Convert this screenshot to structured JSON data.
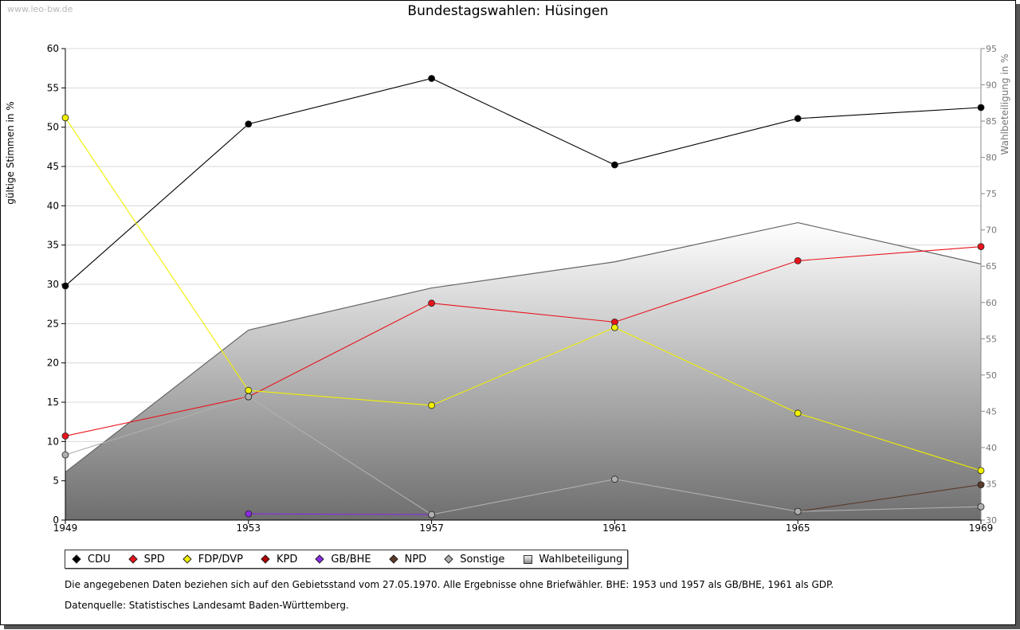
{
  "header": {
    "watermark": "www.leo-bw.de"
  },
  "chart_data": {
    "type": "line",
    "title": "Bundestagswahlen: Hüsingen",
    "ylabel": "gültige Stimmen in %",
    "y2label": "Wahlbeteiligung in %",
    "xlabel": "",
    "x": [
      "1949",
      "1953",
      "1957",
      "1961",
      "1965",
      "1969"
    ],
    "ylim": [
      0,
      60
    ],
    "y2lim": [
      30,
      95
    ],
    "yticks": [
      "0",
      "5",
      "10",
      "15",
      "20",
      "25",
      "30",
      "35",
      "40",
      "45",
      "50",
      "55",
      "60"
    ],
    "y2ticks": [
      "30",
      "35",
      "40",
      "45",
      "50",
      "55",
      "60",
      "65",
      "70",
      "75",
      "80",
      "85",
      "90",
      "95"
    ],
    "grid": true,
    "series": [
      {
        "name": "CDU",
        "color": "#000000",
        "values": [
          29.8,
          50.4,
          56.2,
          45.2,
          51.1,
          52.5
        ]
      },
      {
        "name": "SPD",
        "color": "#e8141c",
        "values": [
          10.7,
          15.7,
          27.6,
          25.2,
          33.0,
          34.8
        ]
      },
      {
        "name": "FDP/DVP",
        "color": "#f0f000",
        "values": [
          51.2,
          16.5,
          14.6,
          24.5,
          13.6,
          6.3
        ]
      },
      {
        "name": "KPD",
        "color": "#b00000",
        "values": [
          null,
          null,
          null,
          null,
          null,
          null
        ]
      },
      {
        "name": "GB/BHE",
        "color": "#8a2be2",
        "values": [
          null,
          0.8,
          0.7,
          null,
          null,
          null
        ]
      },
      {
        "name": "NPD",
        "color": "#5a3a2a",
        "values": [
          null,
          null,
          null,
          null,
          1.1,
          4.5
        ]
      },
      {
        "name": "Sonstige",
        "color": "#b0b0b0",
        "values": [
          8.3,
          15.7,
          0.7,
          5.2,
          1.1,
          1.7
        ]
      }
    ],
    "turnout": {
      "name": "Wahlbeteiligung",
      "values": [
        36.6,
        56.2,
        62.0,
        65.6,
        71.0,
        65.3
      ]
    }
  },
  "legend": {
    "items": [
      {
        "label": "CDU",
        "color": "#000000"
      },
      {
        "label": "SPD",
        "color": "#e8141c"
      },
      {
        "label": "FDP/DVP",
        "color": "#f0f000"
      },
      {
        "label": "KPD",
        "color": "#b00000"
      },
      {
        "label": "GB/BHE",
        "color": "#8a2be2"
      },
      {
        "label": "NPD",
        "color": "#5a3a2a"
      },
      {
        "label": "Sonstige",
        "color": "#b0b0b0"
      }
    ],
    "turnout_label": "Wahlbeteiligung"
  },
  "notes": {
    "line1": "Die angegebenen Daten beziehen sich auf den Gebietsstand vom 27.05.1970. Alle Ergebnisse ohne Briefwähler. BHE: 1953 und 1957 als GB/BHE, 1961 als GDP.",
    "line2": "Datenquelle: Statistisches Landesamt Baden-Württemberg."
  }
}
